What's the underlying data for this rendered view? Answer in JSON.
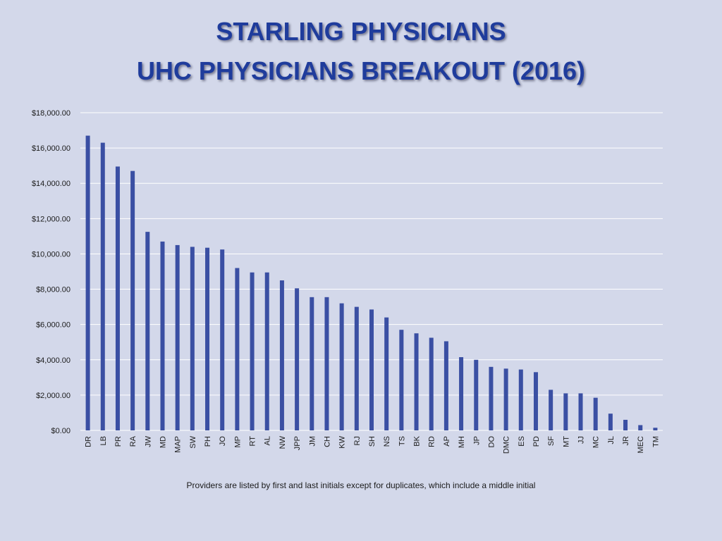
{
  "slide": {
    "title_line1": "STARLING PHYSICIANS",
    "title_line2": "UHC PHYSICIANS BREAKOUT (2016)",
    "footnote": "Providers are listed by first and last initials except for duplicates, which include a middle initial"
  },
  "colors": {
    "background": "#d3d8ea",
    "title": "#1f3c9c",
    "bar": "#3a4fa3",
    "gridline": "#ffffff"
  },
  "chart_data": {
    "type": "bar",
    "title": "",
    "xlabel": "",
    "ylabel": "",
    "ylim": [
      0,
      18000
    ],
    "yticks": [
      0,
      2000,
      4000,
      6000,
      8000,
      10000,
      12000,
      14000,
      16000,
      18000
    ],
    "ytick_labels": [
      "$0.00",
      "$2,000.00",
      "$4,000.00",
      "$6,000.00",
      "$8,000.00",
      "$10,000.00",
      "$12,000.00",
      "$14,000.00",
      "$16,000.00",
      "$18,000.00"
    ],
    "grid": true,
    "legend": "none",
    "categories": [
      "DR",
      "LB",
      "PR",
      "RA",
      "JW",
      "MD",
      "MAP",
      "SW",
      "PH",
      "JO",
      "MP",
      "RT",
      "AL",
      "NW",
      "JPP",
      "JM",
      "CH",
      "KW",
      "RJ",
      "SH",
      "NS",
      "TS",
      "BK",
      "RD",
      "AP",
      "MH",
      "JP",
      "DO",
      "DMC",
      "ES",
      "PD",
      "SF",
      "MT",
      "JJ",
      "MC",
      "JL",
      "JR",
      "MEC",
      "TM"
    ],
    "values": [
      16700,
      16300,
      14950,
      14700,
      11250,
      10700,
      10500,
      10400,
      10350,
      10250,
      9200,
      8950,
      8950,
      8500,
      8050,
      7550,
      7550,
      7200,
      7000,
      6850,
      6400,
      5700,
      5500,
      5250,
      5050,
      4150,
      4000,
      3600,
      3500,
      3450,
      3300,
      2300,
      2100,
      2100,
      1850,
      950,
      600,
      300,
      150
    ]
  }
}
